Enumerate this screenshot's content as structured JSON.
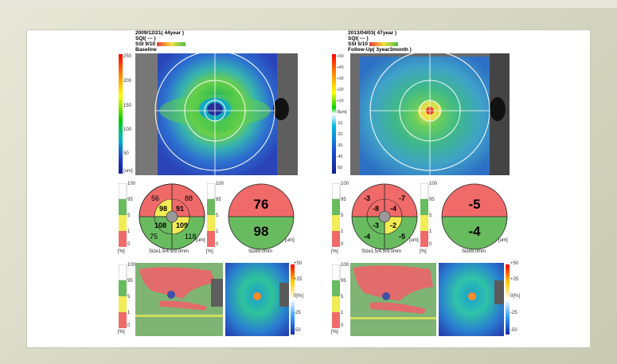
{
  "left": {
    "date_line": "2009/12/21( 44year )",
    "sqi_line": "SQI( --- )",
    "ssi_line": "SSI 9/10",
    "label": "Baseline",
    "scale_ticks": [
      "250",
      "200",
      "150",
      "100",
      "50"
    ],
    "scale_unit": "[um]",
    "etdrs_values": [
      "56",
      "88",
      "98",
      "91",
      "108",
      "109",
      "75",
      "118"
    ],
    "etdrs_caption": "Size1.5/4.5/9.0mm",
    "etdrs_unit": "[um]",
    "half_values": [
      "76",
      "98"
    ],
    "half_caption": "Size9.0mm",
    "half_unit": "[um]",
    "percent_ticks": [
      "100",
      "95",
      "5",
      "1",
      "0"
    ],
    "percent_unit": "[%]",
    "bottom_scale": [
      "+50",
      "+25",
      "0[%]",
      "-25",
      "-50"
    ]
  },
  "right": {
    "date_line": "2013/04/03( 47year )",
    "sqi_line": "SQI( --- )",
    "ssi_line": "SSI 5/10",
    "label": "Follow-Up( 3year3month )",
    "scale_ticks": [
      "+50",
      "+40",
      "+30",
      "+20",
      "+10",
      "0[um]",
      "-10",
      "-20",
      "-30",
      "-40",
      "-50"
    ],
    "scale_unit": "",
    "etdrs_values": [
      "-3",
      "-7",
      "-8",
      "-4",
      "-3",
      "-2",
      "-4",
      "-5"
    ],
    "etdrs_caption": "Size1.5/4.5/9.0mm",
    "etdrs_unit": "[um]",
    "half_values": [
      "-5",
      "-4"
    ],
    "half_caption": "Size9.0mm",
    "half_unit": "[um]",
    "percent_ticks": [
      "100",
      "95",
      "5",
      "1",
      "0"
    ],
    "percent_unit": "[%]",
    "bottom_scale": [
      "+50",
      "+25",
      "0[%]",
      "-25",
      "-50"
    ]
  },
  "colors": {
    "red": "#f06a6a",
    "green": "#69bb5f",
    "yellow": "#f2ec55",
    "gray": "#9a9a9a"
  }
}
